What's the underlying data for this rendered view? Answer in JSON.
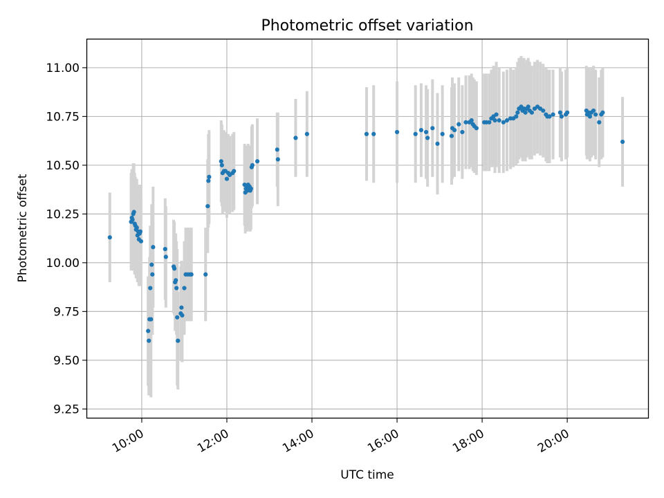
{
  "chart_data": {
    "type": "scatter",
    "title": "Photometric offset variation",
    "xlabel": "UTC time",
    "ylabel": "Photometric offset",
    "x_ticks": [
      "10:00",
      "12:00",
      "14:00",
      "16:00",
      "18:00",
      "20:00"
    ],
    "y_ticks": [
      "9.25",
      "9.50",
      "9.75",
      "10.00",
      "10.25",
      "10.50",
      "10.75",
      "11.00"
    ],
    "xlim": [
      "08:43",
      "21:54"
    ],
    "ylim": [
      9.205,
      11.145
    ],
    "grid": true,
    "point_color": "#1f77b4",
    "errorbar_color": "#d3d3d3",
    "series": [
      {
        "points": [
          [
            "09:15",
            10.13,
            0.23
          ],
          [
            "09:45",
            10.21,
            0.25
          ],
          [
            "09:46",
            10.23,
            0.25
          ],
          [
            "09:47",
            10.22,
            0.26
          ],
          [
            "09:48",
            10.25,
            0.26
          ],
          [
            "09:49",
            10.26,
            0.25
          ],
          [
            "09:50",
            10.2,
            0.26
          ],
          [
            "09:51",
            10.19,
            0.25
          ],
          [
            "09:52",
            10.17,
            0.25
          ],
          [
            "09:53",
            10.18,
            0.25
          ],
          [
            "09:54",
            10.14,
            0.24
          ],
          [
            "09:55",
            10.16,
            0.24
          ],
          [
            "09:56",
            10.12,
            0.24
          ],
          [
            "09:57",
            10.15,
            0.24
          ],
          [
            "09:58",
            10.16,
            0.24
          ],
          [
            "09:59",
            10.11,
            0.23
          ],
          [
            "10:09",
            9.65,
            0.28
          ],
          [
            "10:10",
            9.6,
            0.28
          ],
          [
            "10:11",
            9.71,
            0.32
          ],
          [
            "10:12",
            9.87,
            0.32
          ],
          [
            "10:13",
            9.71,
            0.4
          ],
          [
            "10:14",
            9.99,
            0.31
          ],
          [
            "10:15",
            9.94,
            0.31
          ],
          [
            "10:16",
            10.08,
            0.31
          ],
          [
            "10:33",
            10.07,
            0.26
          ],
          [
            "10:34",
            10.03,
            0.26
          ],
          [
            "10:45",
            9.98,
            0.24
          ],
          [
            "10:46",
            9.97,
            0.24
          ],
          [
            "10:47",
            9.9,
            0.25
          ],
          [
            "10:48",
            9.91,
            0.24
          ],
          [
            "10:49",
            9.87,
            0.24
          ],
          [
            "10:50",
            9.72,
            0.35
          ],
          [
            "10:51",
            9.6,
            0.25
          ],
          [
            "10:55",
            9.74,
            0.24
          ],
          [
            "10:56",
            9.77,
            0.24
          ],
          [
            "10:57",
            9.73,
            0.24
          ],
          [
            "11:00",
            9.87,
            0.24
          ],
          [
            "11:02",
            9.94,
            0.24
          ],
          [
            "11:05",
            9.94,
            0.24
          ],
          [
            "11:08",
            9.94,
            0.24
          ],
          [
            "11:10",
            9.94,
            0.24
          ],
          [
            "11:30",
            9.94,
            0.24
          ],
          [
            "11:33",
            10.29,
            0.24
          ],
          [
            "11:34",
            10.42,
            0.24
          ],
          [
            "11:35",
            10.44,
            0.24
          ],
          [
            "11:52",
            10.52,
            0.21
          ],
          [
            "11:53",
            10.5,
            0.21
          ],
          [
            "11:54",
            10.46,
            0.21
          ],
          [
            "11:56",
            10.47,
            0.21
          ],
          [
            "11:58",
            10.47,
            0.2
          ],
          [
            "12:00",
            10.43,
            0.2
          ],
          [
            "12:02",
            10.46,
            0.2
          ],
          [
            "12:04",
            10.45,
            0.2
          ],
          [
            "12:08",
            10.46,
            0.2
          ],
          [
            "12:10",
            10.47,
            0.2
          ],
          [
            "12:25",
            10.4,
            0.21
          ],
          [
            "12:26",
            10.36,
            0.21
          ],
          [
            "12:27",
            10.38,
            0.21
          ],
          [
            "12:28",
            10.39,
            0.21
          ],
          [
            "12:29",
            10.37,
            0.21
          ],
          [
            "12:30",
            10.4,
            0.21
          ],
          [
            "12:31",
            10.38,
            0.21
          ],
          [
            "12:32",
            10.39,
            0.21
          ],
          [
            "12:33",
            10.37,
            0.21
          ],
          [
            "12:34",
            10.38,
            0.21
          ],
          [
            "12:35",
            10.49,
            0.21
          ],
          [
            "12:36",
            10.5,
            0.21
          ],
          [
            "12:43",
            10.52,
            0.22
          ],
          [
            "13:11",
            10.58,
            0.19
          ],
          [
            "13:12",
            10.53,
            0.24
          ],
          [
            "13:37",
            10.64,
            0.2
          ],
          [
            "13:53",
            10.66,
            0.22
          ],
          [
            "15:17",
            10.66,
            0.24
          ],
          [
            "15:27",
            10.66,
            0.25
          ],
          [
            "16:00",
            10.67,
            0.26
          ],
          [
            "16:26",
            10.66,
            0.25
          ],
          [
            "16:34",
            10.68,
            0.24
          ],
          [
            "16:41",
            10.67,
            0.24
          ],
          [
            "16:43",
            10.64,
            0.25
          ],
          [
            "16:50",
            10.69,
            0.25
          ],
          [
            "16:57",
            10.61,
            0.26
          ],
          [
            "17:04",
            10.66,
            0.25
          ],
          [
            "17:17",
            10.65,
            0.25
          ],
          [
            "17:18",
            10.69,
            0.26
          ],
          [
            "17:21",
            10.68,
            0.24
          ],
          [
            "17:27",
            10.71,
            0.24
          ],
          [
            "17:32",
            10.67,
            0.24
          ],
          [
            "17:37",
            10.72,
            0.24
          ],
          [
            "17:42",
            10.72,
            0.24
          ],
          [
            "17:45",
            10.73,
            0.24
          ],
          [
            "17:47",
            10.71,
            0.24
          ],
          [
            "17:49",
            10.7,
            0.24
          ],
          [
            "17:52",
            10.69,
            0.24
          ],
          [
            "18:03",
            10.72,
            0.25
          ],
          [
            "18:06",
            10.72,
            0.25
          ],
          [
            "18:10",
            10.72,
            0.25
          ],
          [
            "18:13",
            10.74,
            0.25
          ],
          [
            "18:16",
            10.75,
            0.26
          ],
          [
            "18:18",
            10.73,
            0.27
          ],
          [
            "18:20",
            10.76,
            0.27
          ],
          [
            "18:24",
            10.73,
            0.27
          ],
          [
            "18:30",
            10.72,
            0.26
          ],
          [
            "18:35",
            10.73,
            0.26
          ],
          [
            "18:40",
            10.74,
            0.26
          ],
          [
            "18:44",
            10.74,
            0.25
          ],
          [
            "18:48",
            10.75,
            0.25
          ],
          [
            "18:50",
            10.77,
            0.26
          ],
          [
            "18:52",
            10.79,
            0.26
          ],
          [
            "18:55",
            10.8,
            0.26
          ],
          [
            "18:57",
            10.78,
            0.26
          ],
          [
            "18:59",
            10.79,
            0.26
          ],
          [
            "19:01",
            10.77,
            0.25
          ],
          [
            "19:03",
            10.79,
            0.25
          ],
          [
            "19:05",
            10.8,
            0.25
          ],
          [
            "19:07",
            10.78,
            0.25
          ],
          [
            "19:10",
            10.77,
            0.24
          ],
          [
            "19:14",
            10.79,
            0.24
          ],
          [
            "19:18",
            10.8,
            0.24
          ],
          [
            "19:22",
            10.79,
            0.24
          ],
          [
            "19:26",
            10.78,
            0.24
          ],
          [
            "19:30",
            10.76,
            0.24
          ],
          [
            "19:32",
            10.75,
            0.24
          ],
          [
            "19:35",
            10.75,
            0.24
          ],
          [
            "19:40",
            10.76,
            0.23
          ],
          [
            "19:50",
            10.77,
            0.23
          ],
          [
            "19:52",
            10.75,
            0.23
          ],
          [
            "19:58",
            10.76,
            0.23
          ],
          [
            "20:00",
            10.77,
            0.23
          ],
          [
            "20:27",
            10.78,
            0.23
          ],
          [
            "20:28",
            10.76,
            0.23
          ],
          [
            "20:30",
            10.77,
            0.23
          ],
          [
            "20:32",
            10.75,
            0.23
          ],
          [
            "20:34",
            10.77,
            0.23
          ],
          [
            "20:37",
            10.78,
            0.23
          ],
          [
            "20:40",
            10.76,
            0.23
          ],
          [
            "20:45",
            10.72,
            0.23
          ],
          [
            "20:48",
            10.76,
            0.23
          ],
          [
            "20:50",
            10.77,
            0.23
          ],
          [
            "21:18",
            10.62,
            0.23
          ]
        ]
      }
    ]
  }
}
